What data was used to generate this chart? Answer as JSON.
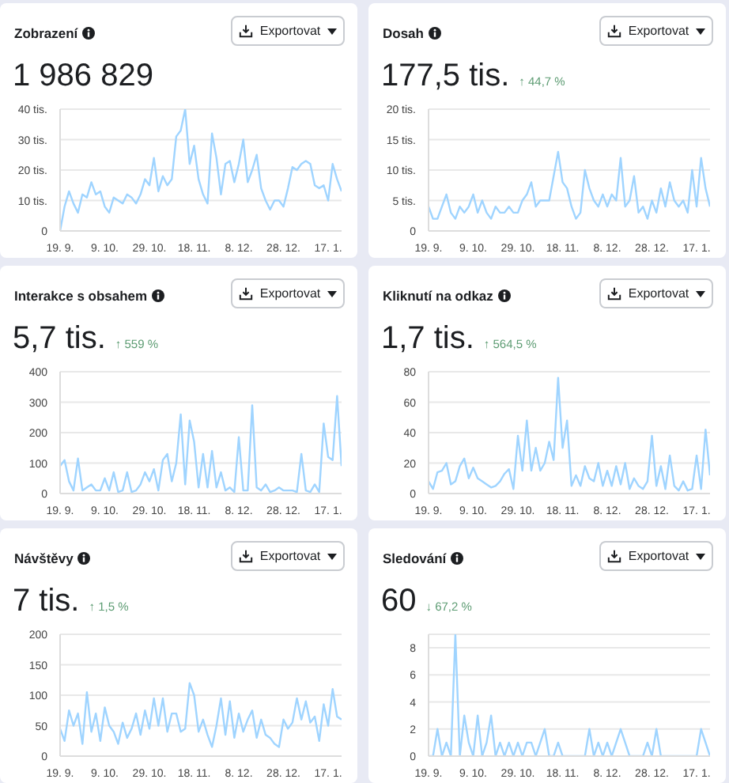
{
  "chart_data": [
    {
      "type": "line",
      "title": "Zobrazení",
      "subtitle": "1 986 829",
      "annotations": [
        "Exportovat"
      ],
      "categories": [
        "19. 9.",
        null,
        null,
        null,
        null,
        null,
        null,
        null,
        null,
        null,
        "9. 10.",
        null,
        null,
        null,
        null,
        null,
        null,
        null,
        null,
        null,
        "29. 10.",
        null,
        null,
        null,
        null,
        null,
        null,
        null,
        null,
        null,
        "18. 11.",
        null,
        null,
        null,
        null,
        null,
        null,
        null,
        null,
        null,
        "8. 12.",
        null,
        null,
        null,
        null,
        null,
        null,
        null,
        null,
        null,
        "28. 12.",
        null,
        null,
        null,
        null,
        null,
        null,
        null,
        null,
        null,
        "17. 1.",
        null,
        null,
        null
      ],
      "series": [
        {
          "color": "#9fd4ff",
          "values": [
            0,
            8,
            13,
            9,
            6,
            12,
            11,
            16,
            12,
            13,
            8,
            6,
            11,
            10,
            9,
            12,
            11,
            9,
            12,
            17,
            15,
            24,
            13,
            18,
            15,
            17,
            31,
            33,
            40,
            22,
            28,
            17,
            12,
            9,
            32,
            24,
            12,
            22,
            23,
            16,
            22,
            30,
            16,
            20,
            25,
            14,
            10,
            7,
            10,
            10,
            8,
            14,
            21,
            20,
            22,
            23,
            22,
            15,
            14,
            15,
            10,
            22,
            17,
            13
          ]
        }
      ],
      "ylim": [
        0,
        40
      ],
      "yticks": [
        0,
        {
          "value": 10,
          "label": "10 tis."
        },
        {
          "value": 20,
          "label": "20 tis."
        },
        {
          "value": 30,
          "label": "30 tis."
        },
        {
          "value": 40,
          "label": "40 tis."
        }
      ],
      "grid": "y"
    },
    {
      "type": "line",
      "title": "Dosah",
      "subtitle": "177,5 tis.",
      "annotations": [
        "Exportovat",
        "↑ 44,7 %"
      ],
      "categories": [
        "19. 9.",
        null,
        null,
        null,
        null,
        null,
        null,
        null,
        null,
        null,
        "9. 10.",
        null,
        null,
        null,
        null,
        null,
        null,
        null,
        null,
        null,
        "29. 10.",
        null,
        null,
        null,
        null,
        null,
        null,
        null,
        null,
        null,
        "18. 11.",
        null,
        null,
        null,
        null,
        null,
        null,
        null,
        null,
        null,
        "8. 12.",
        null,
        null,
        null,
        null,
        null,
        null,
        null,
        null,
        null,
        "28. 12.",
        null,
        null,
        null,
        null,
        null,
        null,
        null,
        null,
        null,
        "17. 1.",
        null,
        null,
        null
      ],
      "series": [
        {
          "color": "#9fd4ff",
          "values": [
            4,
            2,
            2,
            4,
            6,
            3,
            2,
            4,
            3,
            4,
            6,
            3,
            5,
            3,
            2,
            4,
            3,
            3,
            4,
            3,
            3,
            5,
            6,
            8,
            4,
            5,
            5,
            5,
            9,
            13,
            8,
            7,
            4,
            2,
            3,
            10,
            7,
            5,
            4,
            6,
            4,
            6,
            5,
            12,
            4,
            5,
            9,
            3,
            4,
            2,
            5,
            3,
            7,
            4,
            8,
            5,
            4,
            5,
            3,
            10,
            4,
            12,
            7,
            4
          ]
        }
      ],
      "ylim": [
        0,
        20
      ],
      "yticks": [
        0,
        {
          "value": 5,
          "label": "5 tis."
        },
        {
          "value": 10,
          "label": "10 tis."
        },
        {
          "value": 15,
          "label": "15 tis."
        },
        {
          "value": 20,
          "label": "20 tis."
        }
      ],
      "grid": "y"
    },
    {
      "type": "line",
      "title": "Interakce s obsahem",
      "subtitle": "5,7 tis.",
      "annotations": [
        "Exportovat",
        "↑ 559 %"
      ],
      "categories": [
        "19. 9.",
        null,
        null,
        null,
        null,
        null,
        null,
        null,
        null,
        null,
        "9. 10.",
        null,
        null,
        null,
        null,
        null,
        null,
        null,
        null,
        null,
        "29. 10.",
        null,
        null,
        null,
        null,
        null,
        null,
        null,
        null,
        null,
        "18. 11.",
        null,
        null,
        null,
        null,
        null,
        null,
        null,
        null,
        null,
        "8. 12.",
        null,
        null,
        null,
        null,
        null,
        null,
        null,
        null,
        null,
        "28. 12.",
        null,
        null,
        null,
        null,
        null,
        null,
        null,
        null,
        null,
        "17. 1.",
        null,
        null,
        null
      ],
      "series": [
        {
          "color": "#9fd4ff",
          "values": [
            90,
            110,
            40,
            10,
            115,
            10,
            20,
            30,
            10,
            10,
            50,
            10,
            70,
            5,
            10,
            70,
            5,
            10,
            30,
            70,
            40,
            80,
            10,
            110,
            130,
            40,
            100,
            260,
            30,
            240,
            170,
            20,
            130,
            20,
            140,
            20,
            70,
            10,
            20,
            5,
            185,
            10,
            10,
            290,
            20,
            10,
            30,
            5,
            10,
            20,
            10,
            10,
            10,
            5,
            130,
            10,
            5,
            30,
            5,
            230,
            120,
            110,
            320,
            90
          ]
        }
      ],
      "ylim": [
        0,
        400
      ],
      "yticks": [
        0,
        100,
        200,
        300,
        400
      ],
      "grid": "y"
    },
    {
      "type": "line",
      "title": "Kliknutí na odkaz",
      "subtitle": "1,7 tis.",
      "annotations": [
        "Exportovat",
        "↑ 564,5 %"
      ],
      "categories": [
        "19. 9.",
        null,
        null,
        null,
        null,
        null,
        null,
        null,
        null,
        null,
        "9. 10.",
        null,
        null,
        null,
        null,
        null,
        null,
        null,
        null,
        null,
        "29. 10.",
        null,
        null,
        null,
        null,
        null,
        null,
        null,
        null,
        null,
        "18. 11.",
        null,
        null,
        null,
        null,
        null,
        null,
        null,
        null,
        null,
        "8. 12.",
        null,
        null,
        null,
        null,
        null,
        null,
        null,
        null,
        null,
        "28. 12.",
        null,
        null,
        null,
        null,
        null,
        null,
        null,
        null,
        null,
        "17. 1.",
        null,
        null,
        null
      ],
      "series": [
        {
          "color": "#9fd4ff",
          "values": [
            8,
            3,
            14,
            15,
            20,
            6,
            8,
            18,
            23,
            10,
            17,
            10,
            8,
            6,
            4,
            5,
            8,
            13,
            16,
            3,
            38,
            15,
            48,
            15,
            30,
            15,
            20,
            34,
            22,
            76,
            30,
            48,
            5,
            12,
            5,
            18,
            10,
            8,
            20,
            5,
            15,
            5,
            18,
            6,
            20,
            3,
            10,
            5,
            3,
            8,
            38,
            5,
            18,
            3,
            25,
            5,
            2,
            8,
            2,
            3,
            25,
            3,
            42,
            12
          ]
        }
      ],
      "ylim": [
        0,
        80
      ],
      "yticks": [
        0,
        20,
        40,
        60,
        80
      ],
      "grid": "y"
    },
    {
      "type": "line",
      "title": "Návštěvy",
      "subtitle": "7 tis.",
      "annotations": [
        "Exportovat",
        "↑ 1,5 %"
      ],
      "categories": [
        "19. 9.",
        null,
        null,
        null,
        null,
        null,
        null,
        null,
        null,
        null,
        "9. 10.",
        null,
        null,
        null,
        null,
        null,
        null,
        null,
        null,
        null,
        "29. 10.",
        null,
        null,
        null,
        null,
        null,
        null,
        null,
        null,
        null,
        "18. 11.",
        null,
        null,
        null,
        null,
        null,
        null,
        null,
        null,
        null,
        "8. 12.",
        null,
        null,
        null,
        null,
        null,
        null,
        null,
        null,
        null,
        "28. 12.",
        null,
        null,
        null,
        null,
        null,
        null,
        null,
        null,
        null,
        "17. 1.",
        null,
        null,
        null
      ],
      "series": [
        {
          "color": "#9fd4ff",
          "values": [
            45,
            25,
            75,
            50,
            70,
            20,
            105,
            40,
            70,
            25,
            80,
            50,
            40,
            20,
            55,
            30,
            45,
            70,
            35,
            75,
            45,
            95,
            50,
            95,
            40,
            70,
            70,
            40,
            45,
            120,
            100,
            40,
            60,
            35,
            15,
            50,
            95,
            35,
            90,
            30,
            70,
            40,
            60,
            75,
            30,
            60,
            35,
            30,
            20,
            15,
            60,
            45,
            55,
            95,
            60,
            90,
            55,
            65,
            25,
            85,
            50,
            110,
            65,
            60
          ]
        }
      ],
      "ylim": [
        0,
        200
      ],
      "yticks": [
        0,
        50,
        100,
        150,
        200
      ],
      "grid": "y"
    },
    {
      "type": "line",
      "title": "Sledování",
      "subtitle": "60",
      "annotations": [
        "Exportovat",
        "↓ 67,2 %"
      ],
      "categories": [
        "19. 9.",
        null,
        null,
        null,
        null,
        null,
        null,
        null,
        null,
        null,
        "9. 10.",
        null,
        null,
        null,
        null,
        null,
        null,
        null,
        null,
        null,
        "29. 10.",
        null,
        null,
        null,
        null,
        null,
        null,
        null,
        null,
        null,
        "18. 11.",
        null,
        null,
        null,
        null,
        null,
        null,
        null,
        null,
        null,
        "8. 12.",
        null,
        null,
        null,
        null,
        null,
        null,
        null,
        null,
        null,
        "28. 12.",
        null,
        null,
        null,
        null,
        null,
        null,
        null,
        null,
        null,
        "17. 1.",
        null,
        null,
        null
      ],
      "series": [
        {
          "color": "#9fd4ff",
          "values": [
            0,
            0,
            2,
            0,
            1,
            0,
            9,
            0,
            3,
            1,
            0,
            3,
            0,
            1,
            3,
            0,
            1,
            0,
            1,
            0,
            1,
            0,
            1,
            1,
            0,
            1,
            2,
            0,
            0,
            1,
            0,
            0,
            0,
            0,
            0,
            0,
            2,
            0,
            1,
            0,
            1,
            0,
            1,
            2,
            1,
            0,
            0,
            0,
            0,
            1,
            0,
            2,
            0,
            0,
            0,
            0,
            0,
            0,
            0,
            0,
            0,
            2,
            1,
            0
          ]
        }
      ],
      "ylim": [
        0,
        9
      ],
      "yticks": [
        0,
        2,
        4,
        6,
        8
      ],
      "grid": "y"
    }
  ]
}
